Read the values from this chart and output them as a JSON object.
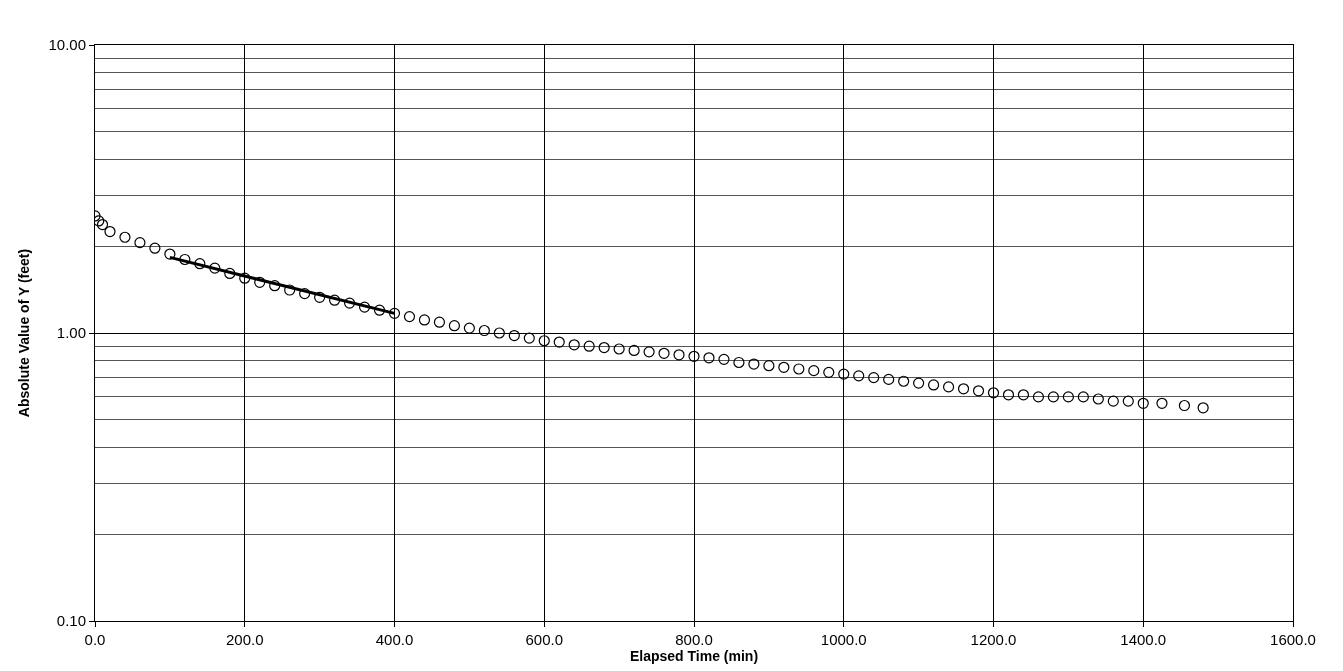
{
  "chart_data": {
    "type": "scatter",
    "xlabel": "Elapsed Time (min)",
    "ylabel": "Absolute Value of Y (feet)",
    "log": "y",
    "grid": true,
    "legend": false,
    "marker": "circle",
    "xlim": [
      0,
      1600
    ],
    "xticks": [
      {
        "value": 0,
        "label": "0.0"
      },
      {
        "value": 200,
        "label": "200.0"
      },
      {
        "value": 400,
        "label": "400.0"
      },
      {
        "value": 600,
        "label": "600.0"
      },
      {
        "value": 800,
        "label": "800.0"
      },
      {
        "value": 1000,
        "label": "1000.0"
      },
      {
        "value": 1200,
        "label": "1200.0"
      },
      {
        "value": 1400,
        "label": "1400.0"
      },
      {
        "value": 1600,
        "label": "1600.0"
      }
    ],
    "ylim": [
      0.1,
      10
    ],
    "yticks": [
      {
        "value": 0.1,
        "label": "0.10"
      },
      {
        "value": 1,
        "label": "1.00"
      },
      {
        "value": 10,
        "label": "10.00"
      }
    ],
    "series": [
      {
        "color": "#000000",
        "x": [
          0,
          5,
          10,
          20,
          40,
          60,
          80,
          100,
          120,
          140,
          160,
          180,
          200,
          220,
          240,
          260,
          280,
          300,
          320,
          340,
          360,
          380,
          400,
          420,
          440,
          460,
          480,
          500,
          520,
          540,
          560,
          580,
          600,
          620,
          640,
          660,
          680,
          700,
          720,
          740,
          760,
          780,
          800,
          820,
          840,
          860,
          880,
          900,
          920,
          940,
          960,
          980,
          1000,
          1020,
          1040,
          1060,
          1080,
          1100,
          1120,
          1140,
          1160,
          1180,
          1200,
          1220,
          1240,
          1260,
          1280,
          1300,
          1320,
          1340,
          1360,
          1380,
          1400,
          1425,
          1455,
          1480
        ],
        "values": [
          2.55,
          2.45,
          2.38,
          2.25,
          2.15,
          2.06,
          1.97,
          1.88,
          1.8,
          1.74,
          1.68,
          1.61,
          1.55,
          1.5,
          1.46,
          1.41,
          1.37,
          1.33,
          1.3,
          1.27,
          1.23,
          1.2,
          1.17,
          1.14,
          1.11,
          1.09,
          1.06,
          1.04,
          1.02,
          1.0,
          0.98,
          0.96,
          0.94,
          0.93,
          0.91,
          0.9,
          0.89,
          0.88,
          0.87,
          0.86,
          0.85,
          0.84,
          0.83,
          0.82,
          0.81,
          0.79,
          0.78,
          0.77,
          0.76,
          0.75,
          0.74,
          0.73,
          0.72,
          0.71,
          0.7,
          0.69,
          0.68,
          0.67,
          0.66,
          0.65,
          0.64,
          0.63,
          0.62,
          0.61,
          0.61,
          0.6,
          0.6,
          0.6,
          0.6,
          0.59,
          0.58,
          0.58,
          0.57,
          0.57,
          0.56,
          0.55
        ]
      },
      {
        "type": "line",
        "color": "#000000",
        "marker": "none",
        "line_style": "solid",
        "x": [
          100,
          400
        ],
        "values": [
          1.83,
          1.17
        ]
      }
    ]
  }
}
